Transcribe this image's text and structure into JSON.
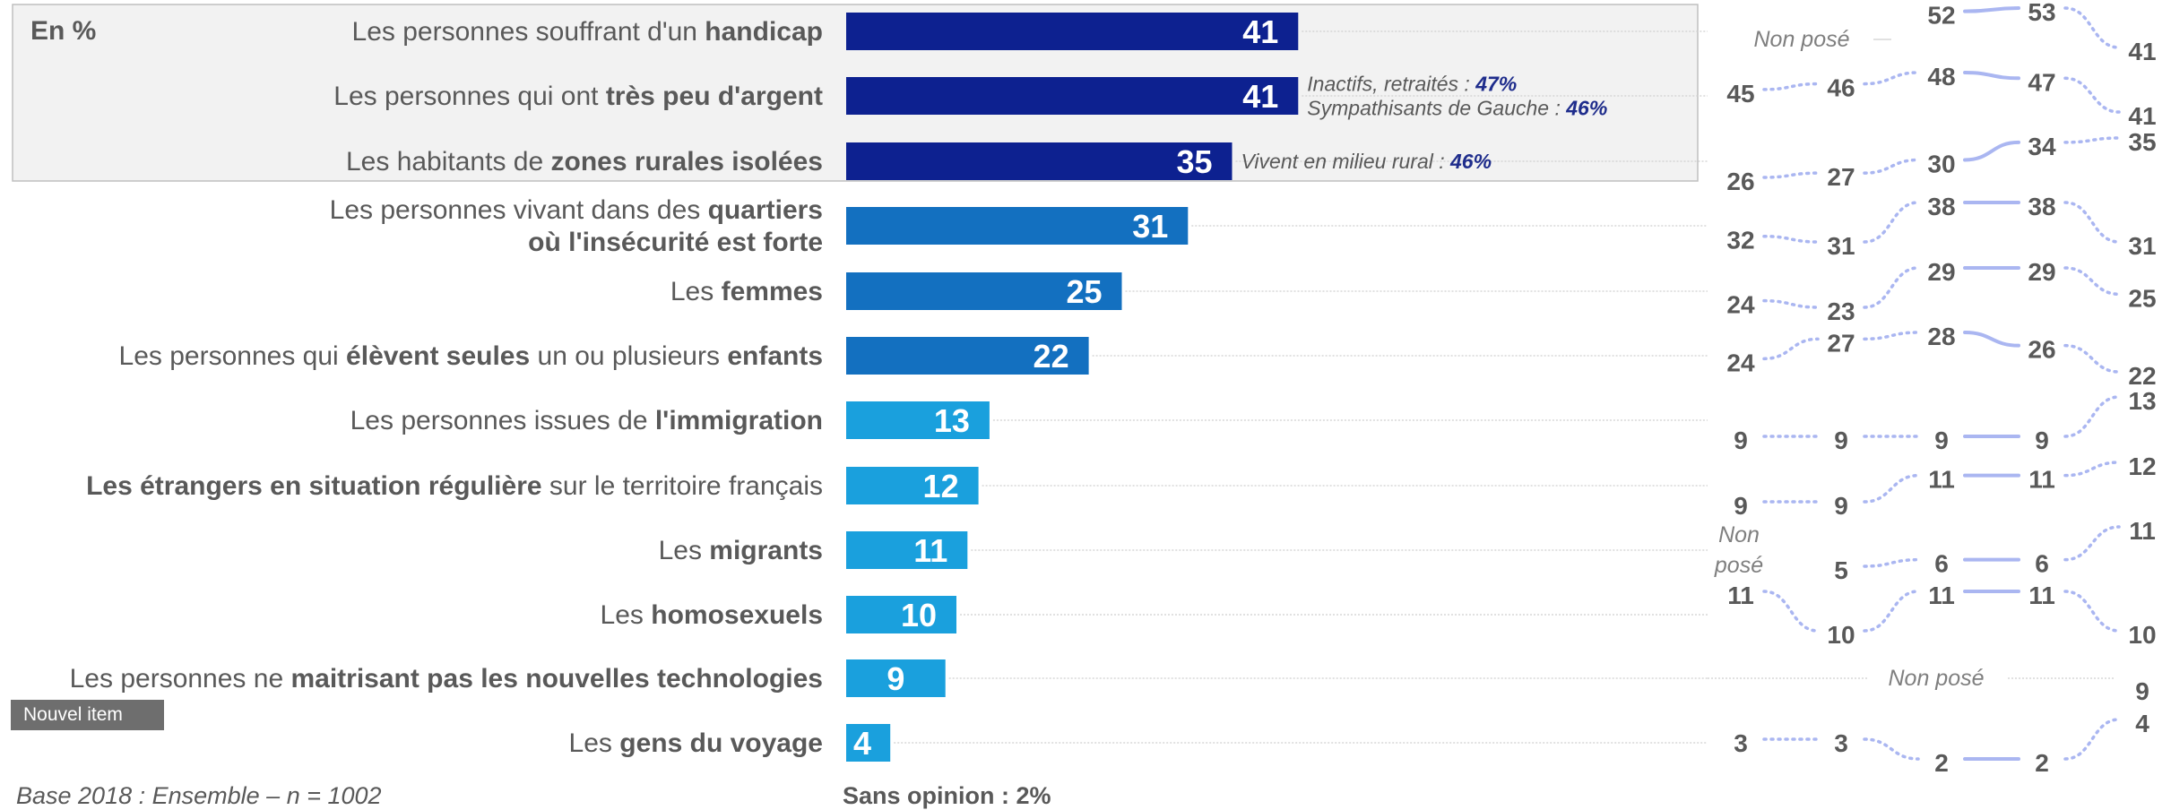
{
  "header": {
    "unit_label": "En %"
  },
  "badge": {
    "label": "Nouvel item"
  },
  "footer": {
    "base_text": "Base 2018 : Ensemble – n = 1002",
    "sans_opinion": "Sans opinion : 2%"
  },
  "colors": {
    "dark": "#0d2190",
    "mid": "#1370c0",
    "light": "#1aa0dd",
    "highlight": "#f2f2f2",
    "trend_solid": "#aab6f1",
    "trend_dotted": "#aab6f1",
    "note_value": "#1f2d8c"
  },
  "not_asked": {
    "label": "Non posé"
  },
  "chart_data": {
    "type": "bar",
    "orientation": "horizontal",
    "xlim": [
      0,
      100
    ],
    "categories": [
      [
        {
          "t": "Les personnes souffrant d'un "
        },
        {
          "t": "handicap",
          "b": true
        }
      ],
      [
        {
          "t": "Les personnes qui ont "
        },
        {
          "t": "très peu d'argent",
          "b": true
        }
      ],
      [
        {
          "t": "Les habitants de "
        },
        {
          "t": "zones rurales isolées",
          "b": true
        }
      ],
      [
        {
          "t": "Les personnes vivant dans des "
        },
        {
          "t": "quartiers",
          "b": true
        },
        {
          "t": "\n"
        },
        {
          "t": "où l'insécurité est forte",
          "b": true
        }
      ],
      [
        {
          "t": "Les "
        },
        {
          "t": "femmes",
          "b": true
        }
      ],
      [
        {
          "t": "Les personnes qui "
        },
        {
          "t": "élèvent seules",
          "b": true
        },
        {
          "t": " un ou plusieurs "
        },
        {
          "t": "enfants",
          "b": true
        }
      ],
      [
        {
          "t": "Les personnes issues de "
        },
        {
          "t": "l'immigration",
          "b": true
        }
      ],
      [
        {
          "t": "Les étrangers en situation régulière",
          "b": true
        },
        {
          "t": " sur le territoire français"
        }
      ],
      [
        {
          "t": "Les "
        },
        {
          "t": "migrants",
          "b": true
        }
      ],
      [
        {
          "t": "Les "
        },
        {
          "t": "homosexuels",
          "b": true
        }
      ],
      [
        {
          "t": "Les personnes ne "
        },
        {
          "t": "maitrisant pas les nouvelles technologies",
          "b": true
        }
      ],
      [
        {
          "t": "Les "
        },
        {
          "t": "gens du voyage",
          "b": true
        }
      ]
    ],
    "values": [
      41,
      41,
      35,
      31,
      25,
      22,
      13,
      12,
      11,
      10,
      9,
      4
    ],
    "bar_tone": [
      "dark",
      "dark",
      "dark",
      "mid",
      "mid",
      "mid",
      "light",
      "light",
      "light",
      "light",
      "light",
      "light"
    ],
    "highlighted_rows": [
      0,
      1,
      2
    ],
    "notes": [
      null,
      [
        [
          {
            "t": "Inactifs, retraités : "
          },
          {
            "t": "47%",
            "v": true
          }
        ],
        [
          {
            "t": "Sympathisants de Gauche : "
          },
          {
            "t": "46%",
            "v": true
          }
        ]
      ],
      [
        [
          {
            "t": "Vivent en milieu rural : "
          },
          {
            "t": "46%",
            "v": true
          }
        ]
      ],
      null,
      null,
      null,
      null,
      null,
      null,
      null,
      null,
      null
    ],
    "trend": {
      "points": 5,
      "segment_style": [
        "dotted",
        "dotted",
        "solid",
        "dotted"
      ],
      "rows": [
        [
          null,
          null,
          52,
          53,
          41
        ],
        [
          45,
          46,
          48,
          47,
          41
        ],
        [
          26,
          27,
          30,
          34,
          35
        ],
        [
          32,
          31,
          38,
          38,
          31
        ],
        [
          24,
          23,
          29,
          29,
          25
        ],
        [
          24,
          27,
          28,
          26,
          22
        ],
        [
          9,
          9,
          9,
          9,
          13
        ],
        [
          9,
          9,
          11,
          11,
          12
        ],
        [
          null,
          5,
          6,
          6,
          11
        ],
        [
          11,
          10,
          11,
          11,
          10
        ],
        [
          null,
          null,
          null,
          null,
          9
        ],
        [
          3,
          3,
          2,
          2,
          4
        ]
      ]
    }
  }
}
